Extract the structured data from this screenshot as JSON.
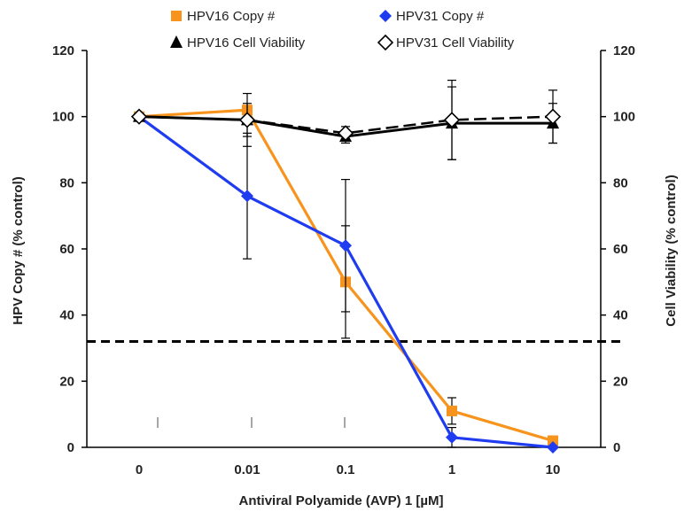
{
  "chart_data": {
    "type": "line",
    "title": "",
    "xlabel": "Antiviral Polyamide (AVP) 1 [µM]",
    "ylabel_left": "HPV Copy # (% control)",
    "ylabel_right": "Cell Viability (% control)",
    "categories": [
      "0",
      "0.01",
      "0.1",
      "1",
      "10"
    ],
    "ylim": [
      0,
      120
    ],
    "yticks": [
      "0",
      "20",
      "40",
      "60",
      "80",
      "100",
      "120"
    ],
    "y2ticks": [
      "0",
      "20",
      "40",
      "60",
      "80",
      "100",
      "120"
    ],
    "legend_position": "top",
    "threshold_line": {
      "y": 32,
      "style": "dashed",
      "color": "#000000"
    },
    "series": [
      {
        "name": "HPV16 Copy #",
        "marker": "square",
        "color": "#F7941D",
        "values": [
          100,
          102,
          50,
          11,
          2
        ],
        "errors": [
          0,
          0,
          17,
          4,
          0
        ]
      },
      {
        "name": "HPV31 Copy #",
        "marker": "diamond",
        "color": "#1F3CF0",
        "values": [
          100,
          76,
          61,
          3,
          0
        ],
        "errors": [
          0,
          19,
          20,
          3,
          0
        ]
      },
      {
        "name": "HPV16 Cell Viability",
        "marker": "triangle",
        "color": "#000000",
        "values": [
          100,
          99,
          94,
          98,
          98
        ],
        "errors": [
          0,
          5,
          2,
          11,
          6
        ]
      },
      {
        "name": "HPV31 Cell Viability",
        "marker": "open-diamond",
        "color": "#000000",
        "dashed": true,
        "values": [
          100,
          99,
          95,
          99,
          100
        ],
        "errors": [
          0,
          8,
          2,
          12,
          8
        ]
      }
    ]
  }
}
